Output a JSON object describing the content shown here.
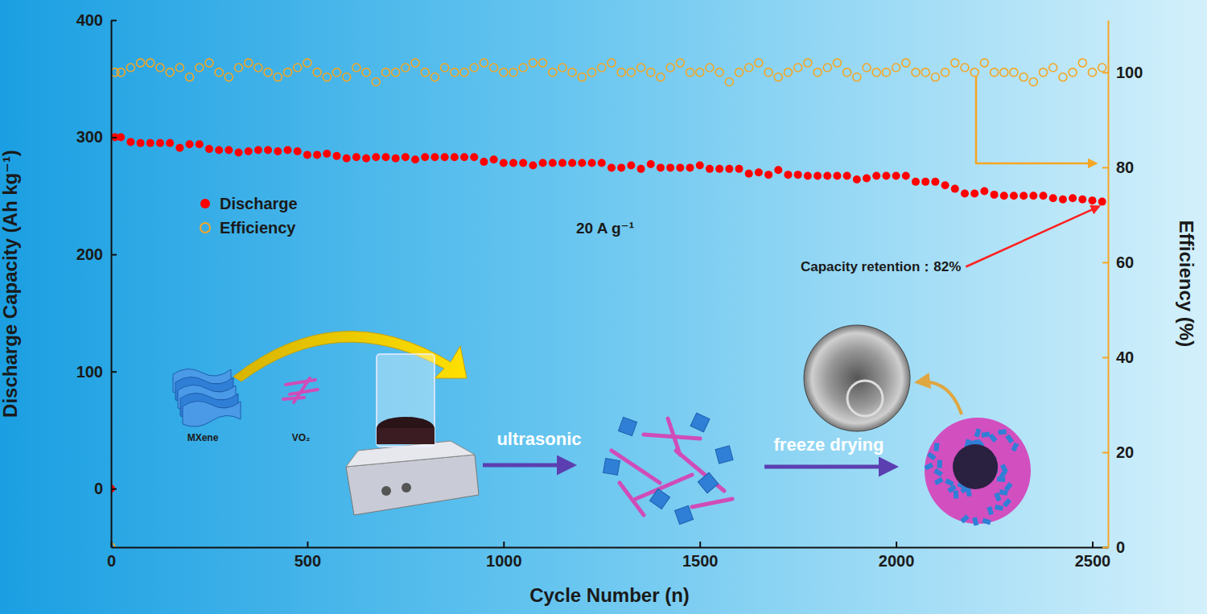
{
  "chart_data": {
    "type": "scatter",
    "x_label": "Cycle Number (n)",
    "y_label": "Discharge Capacity (Ah kg⁻¹)",
    "y2_label": "Efficiency (%)",
    "annotations": [
      "20 A g⁻¹",
      "Capacity retention：82%",
      "MXene",
      "VO₂",
      "ultrasonic",
      "freeze drying"
    ],
    "x": [
      0,
      10,
      25,
      50,
      75,
      100,
      125,
      150,
      175,
      200,
      225,
      250,
      275,
      300,
      325,
      350,
      375,
      400,
      425,
      450,
      475,
      500,
      525,
      550,
      575,
      600,
      625,
      650,
      675,
      700,
      725,
      750,
      775,
      800,
      825,
      850,
      875,
      900,
      925,
      950,
      975,
      1000,
      1025,
      1050,
      1075,
      1100,
      1125,
      1150,
      1175,
      1200,
      1225,
      1250,
      1275,
      1300,
      1325,
      1350,
      1375,
      1400,
      1425,
      1450,
      1475,
      1500,
      1525,
      1550,
      1575,
      1600,
      1625,
      1650,
      1675,
      1700,
      1725,
      1750,
      1775,
      1800,
      1825,
      1850,
      1875,
      1900,
      1925,
      1950,
      1975,
      2000,
      2025,
      2050,
      2075,
      2100,
      2125,
      2150,
      2175,
      2200,
      2225,
      2250,
      2275,
      2300,
      2325,
      2350,
      2375,
      2400,
      2425,
      2450,
      2475,
      2500,
      2525
    ],
    "series": [
      {
        "name": "Discharge",
        "color": "#ff0000",
        "marker": "circle",
        "values": [
          0,
          300,
          300,
          296,
          295,
          295,
          295,
          295,
          291,
          294,
          294,
          290,
          289,
          289,
          287,
          288,
          289,
          289,
          288,
          289,
          288,
          285,
          285,
          286,
          284,
          282,
          283,
          282,
          283,
          283,
          282,
          283,
          281,
          283,
          283,
          283,
          283,
          283,
          283,
          279,
          281,
          278,
          278,
          278,
          276,
          278,
          278,
          278,
          278,
          278,
          278,
          278,
          274,
          274,
          276,
          273,
          277,
          274,
          274,
          274,
          274,
          276,
          273,
          273,
          273,
          273,
          269,
          270,
          268,
          272,
          268,
          268,
          267,
          267,
          267,
          267,
          267,
          264,
          265,
          267,
          267,
          267,
          267,
          262,
          262,
          262,
          259,
          256,
          252,
          252,
          254,
          251,
          250,
          250,
          250,
          250,
          250,
          248,
          247,
          248,
          247,
          246,
          245
        ]
      },
      {
        "name": "Efficiency",
        "color": "#f5a623",
        "marker": "circle-open",
        "axis": "y2",
        "values": [
          0,
          100,
          100,
          101,
          102,
          102,
          101,
          100,
          101,
          99,
          101,
          102,
          100,
          99,
          101,
          102,
          101,
          100,
          99,
          100,
          101,
          102,
          100,
          99,
          100,
          99,
          101,
          100,
          98,
          100,
          100,
          101,
          102,
          100,
          99,
          101,
          100,
          100,
          101,
          102,
          101,
          100,
          100,
          101,
          102,
          102,
          100,
          101,
          100,
          99,
          100,
          101,
          102,
          100,
          100,
          101,
          100,
          99,
          101,
          102,
          100,
          100,
          101,
          100,
          98,
          100,
          101,
          102,
          100,
          99,
          100,
          101,
          102,
          100,
          101,
          102,
          100,
          99,
          101,
          100,
          100,
          101,
          102,
          100,
          100,
          99,
          100,
          102,
          101,
          100,
          102,
          100,
          100,
          100,
          99,
          98,
          100,
          101,
          99,
          100,
          102,
          100,
          101
        ]
      }
    ],
    "xlim": [
      0,
      2540
    ],
    "xticks": [
      0,
      500,
      1000,
      1500,
      2000,
      2500
    ],
    "ylim": [
      -50,
      400
    ],
    "yticks": [
      0,
      100,
      200,
      300,
      400
    ],
    "y2lim": [
      0,
      111
    ],
    "y2ticks": [
      0,
      20,
      40,
      60,
      80,
      100
    ],
    "grid": false,
    "legend": "upper left"
  }
}
